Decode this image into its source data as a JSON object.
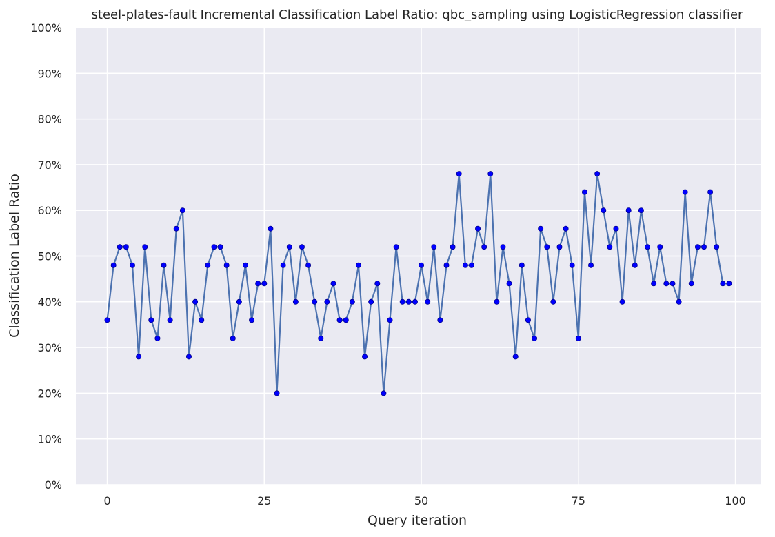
{
  "chart_data": {
    "type": "line",
    "title": "steel-plates-fault Incremental Classification Label Ratio: qbc_sampling using LogisticRegression classifier",
    "xlabel": "Query iteration",
    "ylabel": "Classification Label Ratio",
    "xlim": [
      -5,
      104
    ],
    "ylim": [
      0,
      100
    ],
    "xticks": [
      0,
      25,
      50,
      75,
      100
    ],
    "xtick_labels": [
      "0",
      "25",
      "50",
      "75",
      "100"
    ],
    "yticks": [
      0,
      10,
      20,
      30,
      40,
      50,
      60,
      70,
      80,
      90,
      100
    ],
    "ytick_labels": [
      "0%",
      "10%",
      "20%",
      "30%",
      "40%",
      "50%",
      "60%",
      "70%",
      "80%",
      "90%",
      "100%"
    ],
    "grid": true,
    "colors": {
      "background": "#eaeaf2",
      "grid": "#ffffff",
      "line": "#4c72b0",
      "marker": "#0000ff",
      "marker_edge": "#00008b"
    },
    "series": [
      {
        "x": [
          0,
          1,
          2,
          3,
          4,
          5,
          6,
          7,
          8,
          9,
          10,
          11,
          12,
          13,
          14,
          15,
          16,
          17,
          18,
          19,
          20,
          21,
          22,
          23,
          24,
          25,
          26,
          27,
          28,
          29,
          30,
          31,
          32,
          33,
          34,
          35,
          36,
          37,
          38,
          39,
          40,
          41,
          42,
          43,
          44,
          45,
          46,
          47,
          48,
          49,
          50,
          51,
          52,
          53,
          54,
          55,
          56,
          57,
          58,
          59,
          60,
          61,
          62,
          63,
          64,
          65,
          66,
          67,
          68,
          69,
          70,
          71,
          72,
          73,
          74,
          75,
          76,
          77,
          78,
          79,
          80,
          81,
          82,
          83,
          84,
          85,
          86,
          87,
          88,
          89,
          90,
          91,
          92,
          93,
          94,
          95,
          96,
          97,
          98,
          99
        ],
        "y": [
          36,
          48,
          52,
          52,
          48,
          28,
          52,
          36,
          32,
          48,
          36,
          56,
          60,
          28,
          40,
          36,
          48,
          52,
          52,
          48,
          32,
          40,
          48,
          36,
          44,
          44,
          56,
          20,
          48,
          52,
          40,
          52,
          48,
          40,
          32,
          40,
          44,
          36,
          36,
          40,
          48,
          28,
          40,
          44,
          20,
          36,
          52,
          40,
          40,
          40,
          48,
          40,
          52,
          36,
          48,
          52,
          68,
          48,
          48,
          56,
          52,
          68,
          40,
          52,
          44,
          28,
          48,
          36,
          32,
          56,
          52,
          40,
          52,
          56,
          48,
          32,
          64,
          48,
          68,
          60,
          52,
          56,
          40,
          60,
          48,
          60,
          52,
          44,
          52,
          44,
          44,
          40,
          64,
          44,
          52,
          52,
          64,
          52,
          44,
          44
        ]
      }
    ]
  }
}
